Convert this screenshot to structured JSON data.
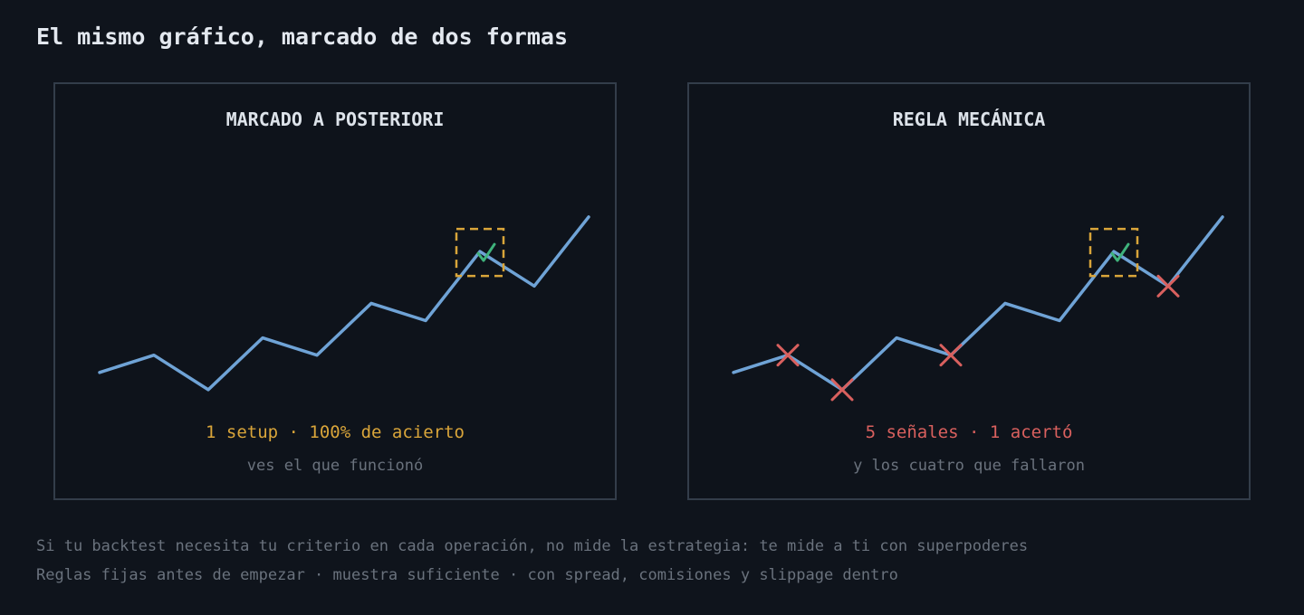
{
  "title": "El mismo gráfico, marcado de dos formas",
  "colors": {
    "background": "#0f141c",
    "price_line": "#6fa3d6",
    "setup_box": "#d9a53a",
    "win": "#3fb37c",
    "loss": "#d9605e",
    "result_left": "#d9a53a",
    "result_right": "#d9605e"
  },
  "price_series": [
    2,
    3,
    1,
    4,
    3,
    6,
    5,
    9,
    7,
    11
  ],
  "panels": [
    {
      "title": "MARCADO A POSTERIORI",
      "result": "1 setup · 100% de acierto",
      "subtitle": "ves el que funcionó",
      "winning_signal_index": 7,
      "losing_signal_indices": []
    },
    {
      "title": "REGLA MECÁNICA",
      "result": "5 señales · 1 acertó",
      "subtitle": "y los cuatro que fallaron",
      "winning_signal_index": 7,
      "losing_signal_indices": [
        1,
        2,
        4,
        8
      ]
    }
  ],
  "footer": {
    "line1": "Si tu backtest necesita tu criterio en cada operación, no mide la estrategia: te mide a ti con superpoderes",
    "line2": "Reglas fijas antes de empezar · muestra suficiente · con spread, comisiones y slippage dentro"
  }
}
